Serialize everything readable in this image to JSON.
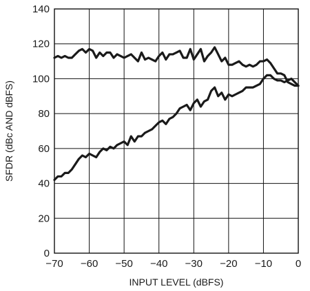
{
  "chart_data": {
    "type": "line",
    "title": "",
    "xlabel": "INPUT LEVEL (dBFS)",
    "ylabel": "SFDR (dBc AND dBFS)",
    "xlim": [
      -70,
      0
    ],
    "ylim": [
      0,
      140
    ],
    "xticks": [
      -70,
      -60,
      -50,
      -40,
      -30,
      -20,
      -10,
      0
    ],
    "yticks": [
      0,
      20,
      40,
      60,
      80,
      100,
      120,
      140
    ],
    "xtick_labels": [
      "−70",
      "−60",
      "−50",
      "−40",
      "−30",
      "−20",
      "−10",
      "0"
    ],
    "ytick_labels": [
      "0",
      "20",
      "40",
      "60",
      "80",
      "100",
      "120",
      "140"
    ],
    "grid": true,
    "series": [
      {
        "x": [
          -70,
          -69,
          -68,
          -67,
          -66,
          -65,
          -64,
          -63,
          -62,
          -61,
          -60,
          -59,
          -58,
          -57,
          -56,
          -55,
          -54,
          -53,
          -52,
          -51,
          -50,
          -49,
          -48,
          -47,
          -46,
          -45,
          -44,
          -43,
          -42,
          -41,
          -40,
          -39,
          -38,
          -37,
          -36,
          -35,
          -34,
          -33,
          -32,
          -31,
          -30,
          -29,
          -28,
          -27,
          -26,
          -25,
          -24,
          -23,
          -22,
          -21,
          -20,
          -19,
          -18,
          -17,
          -16,
          -15,
          -14,
          -13,
          -12,
          -11,
          -10,
          -9,
          -8,
          -7,
          -6,
          -5,
          -4,
          -3,
          -2,
          -1,
          0
        ],
        "values": [
          112,
          113,
          112,
          113,
          112,
          112,
          114,
          116,
          117,
          115,
          117,
          116,
          112,
          115,
          113,
          115,
          115,
          112,
          114,
          113,
          112,
          113,
          114,
          112,
          110,
          115,
          111,
          112,
          111,
          110,
          113,
          115,
          111,
          114,
          114,
          115,
          116,
          112,
          112,
          117,
          111,
          114,
          117,
          110,
          113,
          115,
          118,
          114,
          110,
          112,
          108,
          108,
          109,
          110,
          108,
          107,
          108,
          107,
          108,
          110,
          110,
          111,
          109,
          106,
          103,
          103,
          102,
          98,
          97,
          96,
          96
        ]
      },
      {
        "x": [
          -70,
          -69,
          -68,
          -67,
          -66,
          -65,
          -64,
          -63,
          -62,
          -61,
          -60,
          -59,
          -58,
          -57,
          -56,
          -55,
          -54,
          -53,
          -52,
          -51,
          -50,
          -49,
          -48,
          -47,
          -46,
          -45,
          -44,
          -43,
          -42,
          -41,
          -40,
          -39,
          -38,
          -37,
          -36,
          -35,
          -34,
          -33,
          -32,
          -31,
          -30,
          -29,
          -28,
          -27,
          -26,
          -25,
          -24,
          -23,
          -22,
          -21,
          -20,
          -19,
          -18,
          -17,
          -16,
          -15,
          -14,
          -13,
          -12,
          -11,
          -10,
          -9,
          -8,
          -7,
          -6,
          -5,
          -4,
          -3,
          -2,
          -1,
          0
        ],
        "values": [
          42,
          44,
          44,
          46,
          46,
          48,
          51,
          54,
          56,
          55,
          57,
          56,
          55,
          58,
          60,
          59,
          61,
          60,
          62,
          63,
          64,
          62,
          67,
          64,
          67,
          67,
          69,
          70,
          71,
          73,
          75,
          76,
          74,
          77,
          78,
          80,
          83,
          84,
          85,
          82,
          86,
          88,
          84,
          87,
          88,
          93,
          95,
          90,
          92,
          88,
          91,
          90,
          91,
          92,
          93,
          95,
          95,
          95,
          96,
          97,
          100,
          102,
          102,
          100,
          99,
          99,
          98,
          99,
          100,
          98,
          96
        ]
      }
    ]
  },
  "style": {
    "line_color": "#1a1a1a",
    "grid_color": "#111111",
    "background": "#ffffff"
  }
}
